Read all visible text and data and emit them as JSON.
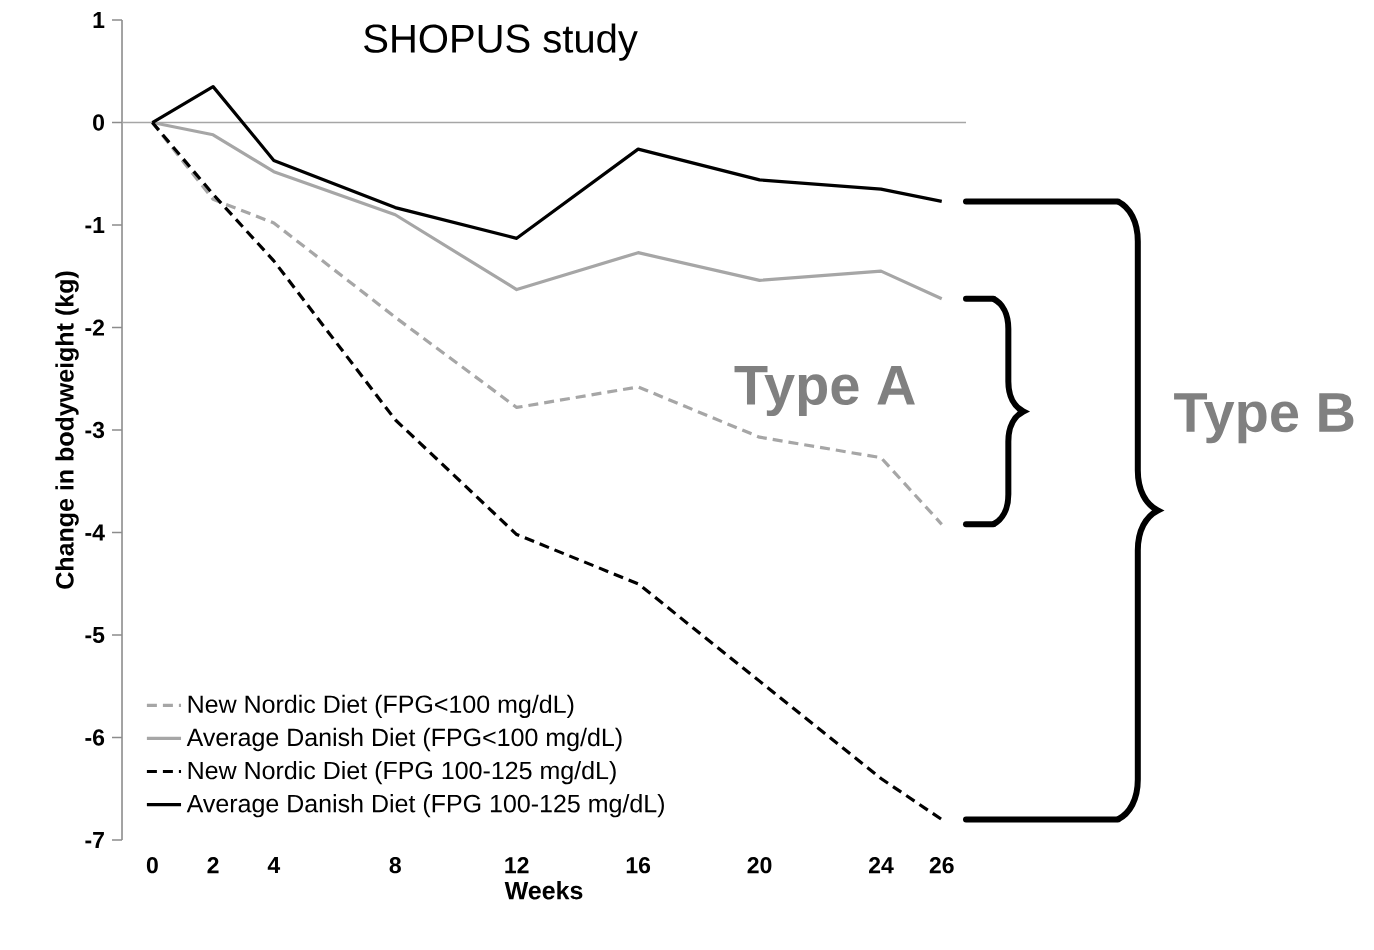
{
  "chart_data": {
    "type": "line",
    "title": "SHOPUS study",
    "xlabel": "Weeks",
    "ylabel": "Change in bodyweight (kg)",
    "x": [
      0,
      2,
      4,
      8,
      12,
      16,
      20,
      24,
      26
    ],
    "series": [
      {
        "name": "New Nordic Diet (FPG<100 mg/dL)",
        "color": "#a6a6a6",
        "line_style": "dashed",
        "values": [
          0,
          -0.75,
          -0.98,
          -1.9,
          -2.78,
          -2.58,
          -3.07,
          -3.27,
          -3.92
        ]
      },
      {
        "name": "Average Danish Diet (FPG<100 mg/dL)",
        "color": "#a6a6a6",
        "line_style": "solid",
        "values": [
          0,
          -0.12,
          -0.48,
          -0.9,
          -1.63,
          -1.27,
          -1.54,
          -1.45,
          -1.72
        ]
      },
      {
        "name": "New Nordic Diet (FPG 100-125 mg/dL)",
        "color": "#000000",
        "line_style": "dashed",
        "values": [
          0,
          -0.7,
          -1.35,
          -2.9,
          -4.02,
          -4.5,
          -5.45,
          -6.4,
          -6.8
        ]
      },
      {
        "name": "Average Danish Diet (FPG 100-125 mg/dL)",
        "color": "#000000",
        "line_style": "solid",
        "values": [
          0,
          0.35,
          -0.37,
          -0.83,
          -1.13,
          -0.26,
          -0.56,
          -0.65,
          -0.77
        ]
      }
    ],
    "xlim": [
      -1,
      26.8
    ],
    "ylim": [
      -7,
      1
    ],
    "xticks": [
      0,
      2,
      4,
      8,
      12,
      16,
      20,
      24,
      26
    ],
    "yticks": [
      -7,
      -6,
      -5,
      -4,
      -3,
      -2,
      -1,
      0,
      1
    ],
    "ref_lines": [
      {
        "axis": "y",
        "value": 0,
        "color": "#a6a6a6"
      }
    ],
    "annotations": [
      "Type A",
      "Type B"
    ],
    "legend": "bottom left",
    "marker": "none",
    "grid": false
  }
}
